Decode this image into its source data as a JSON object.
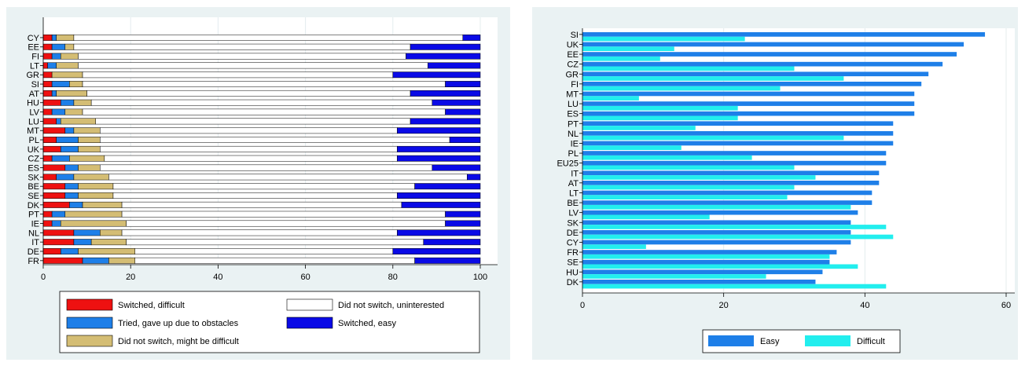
{
  "chart_data": [
    {
      "type": "bar",
      "orientation": "horizontal",
      "stacked": true,
      "categories": [
        "CY",
        "EE",
        "FI",
        "LT",
        "GR",
        "SI",
        "AT",
        "HU",
        "LV",
        "LU",
        "MT",
        "PL",
        "UK",
        "CZ",
        "ES",
        "SK",
        "BE",
        "SE",
        "DK",
        "PT",
        "IE",
        "NL",
        "IT",
        "DE",
        "FR"
      ],
      "series": [
        {
          "name": "Switched, difficult",
          "color": "#ee1111",
          "values": [
            2,
            2,
            2,
            1,
            2,
            2,
            2,
            4,
            2,
            3,
            5,
            3,
            4,
            2,
            5,
            3,
            5,
            5,
            6,
            2,
            2,
            7,
            7,
            4,
            9
          ]
        },
        {
          "name": "Tried, gave up due to obstacles",
          "color": "#1e7fe8",
          "values": [
            1,
            3,
            2,
            2,
            0,
            4,
            1,
            3,
            3,
            1,
            2,
            5,
            4,
            4,
            3,
            4,
            3,
            3,
            3,
            3,
            2,
            6,
            4,
            4,
            6
          ]
        },
        {
          "name": "Did not switch, might be difficult",
          "color": "#d4bd74",
          "values": [
            4,
            2,
            4,
            5,
            7,
            3,
            7,
            4,
            4,
            8,
            6,
            5,
            5,
            8,
            5,
            8,
            8,
            8,
            9,
            13,
            15,
            5,
            8,
            13,
            6
          ]
        },
        {
          "name": "Did not switch, uninterested",
          "color": "#ffffff",
          "values": [
            89,
            77,
            75,
            80,
            71,
            83,
            74,
            78,
            83,
            72,
            68,
            80,
            68,
            67,
            76,
            82,
            69,
            65,
            64,
            74,
            73,
            63,
            68,
            59,
            64
          ]
        },
        {
          "name": "Switched, easy",
          "color": "#0a0ae6",
          "values": [
            4,
            16,
            17,
            12,
            20,
            8,
            16,
            11,
            8,
            16,
            19,
            7,
            19,
            19,
            11,
            3,
            15,
            19,
            18,
            8,
            8,
            19,
            13,
            20,
            15
          ]
        }
      ],
      "xticks": [
        "0",
        "20",
        "40",
        "60",
        "80",
        "100"
      ],
      "xlim": [
        0,
        100
      ],
      "grid": true,
      "legend_position": "bottom"
    },
    {
      "type": "bar",
      "orientation": "horizontal",
      "stacked": false,
      "categories": [
        "SI",
        "UK",
        "EE",
        "CZ",
        "GR",
        "FI",
        "MT",
        "LU",
        "ES",
        "PT",
        "NL",
        "IE",
        "PL",
        "EU25",
        "IT",
        "AT",
        "LT",
        "BE",
        "LV",
        "SK",
        "DE",
        "CY",
        "FR",
        "SE",
        "HU",
        "DK"
      ],
      "series": [
        {
          "name": "Easy",
          "color": "#1e7fe8",
          "values": [
            57,
            54,
            53,
            51,
            49,
            48,
            47,
            47,
            47,
            44,
            44,
            44,
            43,
            43,
            42,
            42,
            41,
            41,
            39,
            38,
            38,
            38,
            36,
            35,
            34,
            33
          ]
        },
        {
          "name": "Difficult",
          "color": "#22eeee",
          "values": [
            23,
            13,
            11,
            30,
            37,
            28,
            8,
            22,
            22,
            16,
            37,
            14,
            24,
            30,
            33,
            30,
            29,
            38,
            18,
            43,
            44,
            9,
            35,
            39,
            26,
            43
          ]
        }
      ],
      "xticks": [
        "0",
        "20",
        "40",
        "60"
      ],
      "xlim": [
        0,
        60
      ],
      "grid": true,
      "legend_position": "bottom"
    }
  ]
}
